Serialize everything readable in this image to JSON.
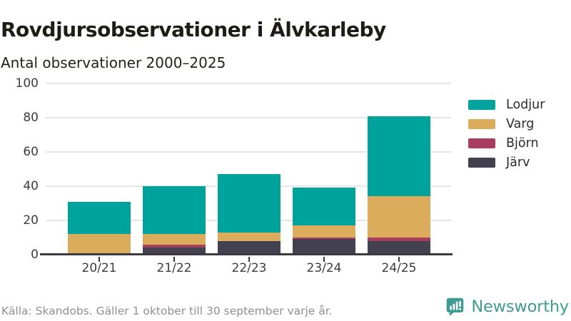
{
  "header": {
    "title": "Rovdjursobservationer i Älvkarleby",
    "subtitle": "Antal observationer 2000–2025"
  },
  "chart_data": {
    "type": "bar",
    "stacked": true,
    "title": "Rovdjursobservationer i Älvkarleby",
    "subtitle": "Antal observationer 2000–2025",
    "categories": [
      "20/21",
      "21/22",
      "22/23",
      "23/24",
      "24/25"
    ],
    "series": [
      {
        "name": "Järv",
        "color": "#434050",
        "values": [
          0,
          4,
          8,
          9,
          8
        ]
      },
      {
        "name": "Björn",
        "color": "#a73d5f",
        "values": [
          0,
          2,
          0,
          1,
          2
        ]
      },
      {
        "name": "Varg",
        "color": "#daac5c",
        "values": [
          12,
          6,
          5,
          7,
          24
        ]
      },
      {
        "name": "Lodjur",
        "color": "#00a39b",
        "values": [
          19,
          28,
          34,
          22,
          47
        ]
      }
    ],
    "stack_order": "bottom-to-top",
    "totals": [
      31,
      40,
      47,
      39,
      81
    ],
    "yticks": [
      0,
      20,
      40,
      60,
      80,
      100
    ],
    "ylim": [
      0,
      100
    ],
    "grid": "horizontal",
    "legend": [
      "Lodjur",
      "Varg",
      "Björn",
      "Järv"
    ],
    "legend_position": "right"
  },
  "colors": {
    "gridline": "#e6e6e6",
    "axis": "#3b3944",
    "brand_teal": "#3e9c92"
  },
  "footer": {
    "source": "Källa: Skandobs. Gäller 1 oktober till 30 september varje år.",
    "brand": "Newsworthy"
  }
}
